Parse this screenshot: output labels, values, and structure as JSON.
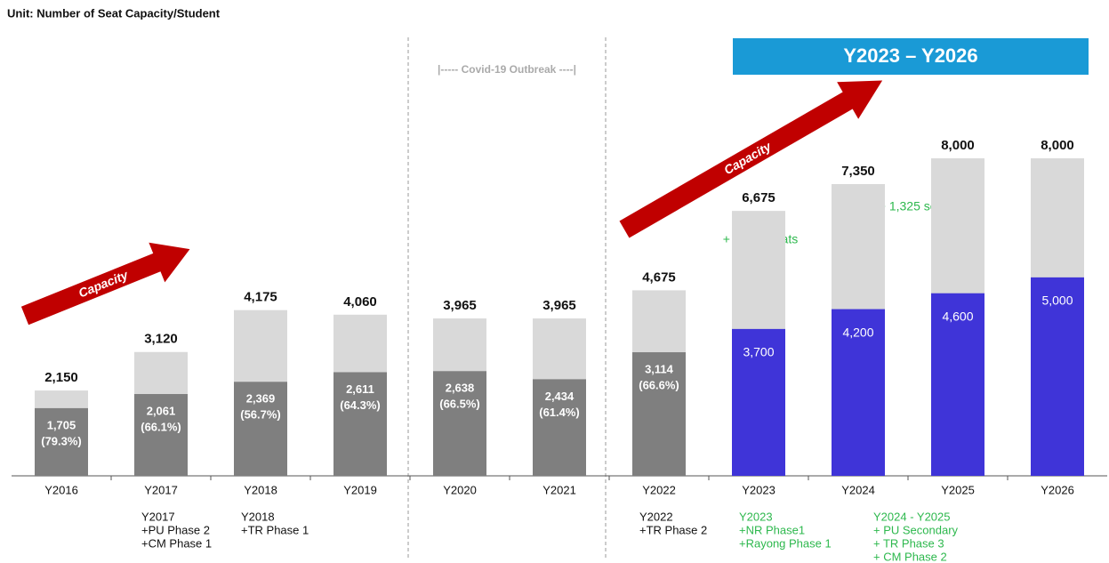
{
  "chart_data": {
    "type": "overlap-bar",
    "title": "Unit: Number of Seat Capacity/Student",
    "categories": [
      "Y2016",
      "Y2017",
      "Y2018",
      "Y2019",
      "Y2020",
      "Y2021",
      "Y2022",
      "Y2023",
      "Y2024",
      "Y2025",
      "Y2026"
    ],
    "ylim": [
      0,
      8000
    ],
    "series": [
      {
        "name": "Capacity",
        "color": "#d9d9d9",
        "values": [
          2150,
          3120,
          4175,
          4060,
          3965,
          3965,
          4675,
          6675,
          7350,
          8000,
          8000
        ],
        "value_labels": [
          "2,150",
          "3,120",
          "4,175",
          "4,060",
          "3,965",
          "3,965",
          "4,675",
          "6,675",
          "7,350",
          "8,000",
          "8,000"
        ]
      },
      {
        "name": "Student",
        "colors": [
          "#7f7f7f",
          "#7f7f7f",
          "#7f7f7f",
          "#7f7f7f",
          "#7f7f7f",
          "#7f7f7f",
          "#7f7f7f",
          "#3f34d8",
          "#3f34d8",
          "#3f34d8",
          "#3f34d8"
        ],
        "values": [
          1705,
          2061,
          2369,
          2611,
          2638,
          2434,
          3114,
          3700,
          4200,
          4600,
          5000
        ],
        "value_labels": [
          [
            "1,705",
            "(79.3%)"
          ],
          [
            "2,061",
            "(66.1%)"
          ],
          [
            "2,369",
            "(56.7%)"
          ],
          [
            "2,611",
            "(64.3%)"
          ],
          [
            "2,638",
            "(66.5%)"
          ],
          [
            "2,434",
            "(61.4%)"
          ],
          [
            "3,114",
            "(66.6%)"
          ],
          [
            "3,700"
          ],
          [
            "4,200"
          ],
          [
            "4,600"
          ],
          [
            "5,000"
          ]
        ]
      }
    ],
    "banner": "Y2023 – Y2026",
    "covid_label": "|----- Covid-19 Outbreak ----|",
    "arrow_labels": [
      "Capacity",
      "Capacity"
    ],
    "annotations": [
      "+ 2,000 seats",
      "+ 1,325 seats"
    ],
    "notes": [
      null,
      [
        "Y2017",
        "+PU Phase 2",
        "+CM Phase 1"
      ],
      [
        "Y2018",
        "+TR Phase 1"
      ],
      null,
      null,
      null,
      [
        "Y2022",
        "+TR Phase 2"
      ],
      [
        "Y2023",
        "+NR Phase1",
        "+Rayong Phase 1"
      ],
      null,
      [
        "Y2024 - Y2025",
        "+ PU Secondary",
        "+ TR Phase 3",
        "+ CM Phase 2"
      ],
      null
    ]
  }
}
